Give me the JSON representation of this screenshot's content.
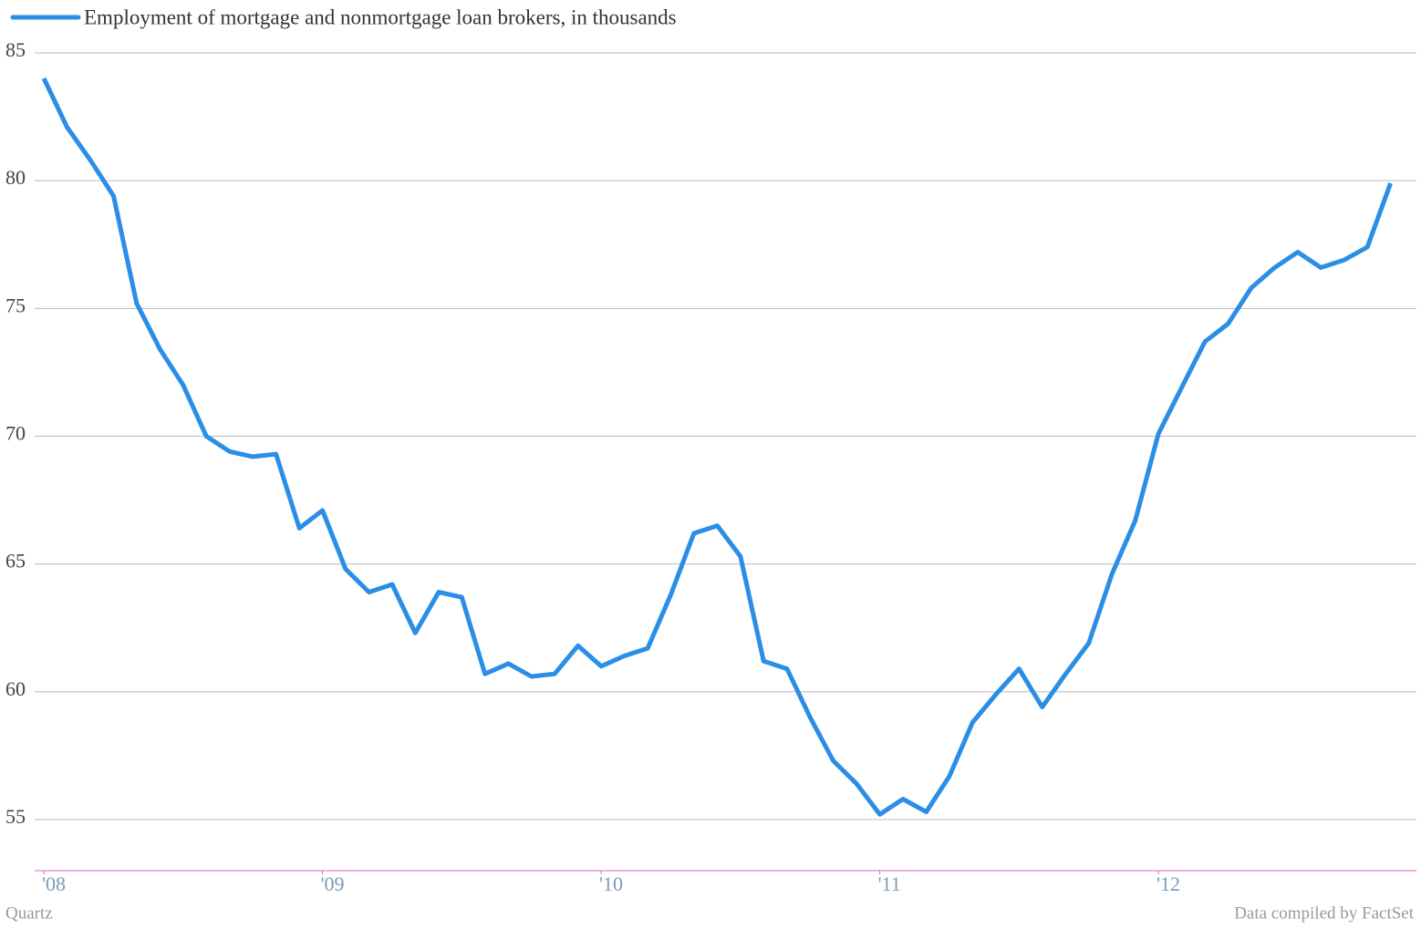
{
  "chart_data": {
    "type": "line",
    "series": [
      {
        "name": "Employment of mortgage and nonmortgage loan brokers, in thousands",
        "color": "#2b8ee6",
        "values": [
          84.0,
          82.1,
          80.8,
          79.4,
          75.2,
          73.4,
          72.0,
          70.0,
          69.4,
          69.2,
          69.3,
          66.4,
          67.1,
          64.8,
          63.9,
          64.2,
          62.3,
          63.9,
          63.7,
          60.7,
          61.1,
          60.6,
          60.7,
          61.8,
          61.0,
          61.4,
          61.7,
          63.8,
          66.2,
          66.5,
          65.3,
          61.2,
          60.9,
          59.0,
          57.3,
          56.4,
          55.2,
          55.8,
          55.3,
          56.7,
          58.8,
          59.9,
          60.9,
          59.4,
          60.7,
          61.9,
          64.6,
          66.7,
          70.1,
          71.9,
          73.7,
          74.4,
          75.8,
          76.6,
          77.2,
          76.6,
          76.9,
          77.4,
          79.9
        ]
      }
    ],
    "x": [
      2008.0,
      2008.083,
      2008.167,
      2008.25,
      2008.333,
      2008.417,
      2008.5,
      2008.583,
      2008.667,
      2008.75,
      2008.833,
      2008.917,
      2009.0,
      2009.083,
      2009.167,
      2009.25,
      2009.333,
      2009.417,
      2009.5,
      2009.583,
      2009.667,
      2009.75,
      2009.833,
      2009.917,
      2010.0,
      2010.083,
      2010.167,
      2010.25,
      2010.333,
      2010.417,
      2010.5,
      2010.583,
      2010.667,
      2010.75,
      2010.833,
      2010.917,
      2011.0,
      2011.083,
      2011.167,
      2011.25,
      2011.333,
      2011.417,
      2011.5,
      2011.583,
      2011.667,
      2011.75,
      2011.833,
      2011.917,
      2012.0,
      2012.083,
      2012.167,
      2012.25,
      2012.333,
      2012.417,
      2012.5,
      2012.583,
      2012.667,
      2012.75,
      2012.833
    ],
    "xlim": [
      2007.967,
      2012.926
    ],
    "xticks": [
      {
        "value": 2008,
        "label": "'08"
      },
      {
        "value": 2009,
        "label": "'09"
      },
      {
        "value": 2010,
        "label": "'10"
      },
      {
        "value": 2011,
        "label": "'11"
      },
      {
        "value": 2012,
        "label": "'12"
      }
    ],
    "ylim": [
      53,
      85
    ],
    "yticks": [
      55,
      60,
      65,
      70,
      75,
      80,
      85
    ],
    "grid": true,
    "source": "Data compiled by FactSet",
    "credit": "Quartz"
  }
}
